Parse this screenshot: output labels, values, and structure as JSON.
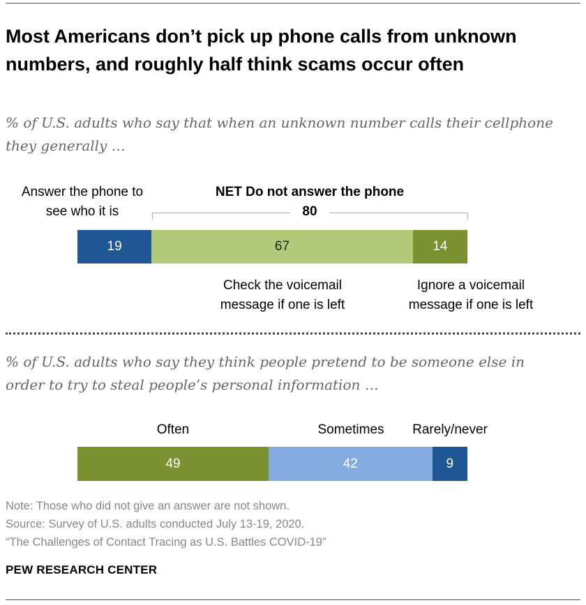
{
  "title": "Most Americans don’t pick up phone calls from unknown numbers, and roughly half think scams occur often",
  "chart_data": [
    {
      "type": "bar",
      "orientation": "horizontal-stacked",
      "subtitle": "% of U.S. adults who say that when an unknown number calls their cellphone they generally …",
      "net_label": "NET Do not answer the phone",
      "net_value": 80,
      "segments": [
        {
          "label": "Answer the phone to see who it is",
          "value": 19,
          "color": "#1f5794"
        },
        {
          "label": "Check the voicemail message if one is left",
          "value": 67,
          "color": "#b3c97a"
        },
        {
          "label": "Ignore a voicemail message if one is left",
          "value": 14,
          "color": "#7a9132"
        }
      ]
    },
    {
      "type": "bar",
      "orientation": "horizontal-stacked",
      "subtitle": "% of U.S. adults who say they think people pretend to be someone else in order to try to steal people’s personal information …",
      "segments": [
        {
          "label": "Often",
          "value": 49,
          "color": "#7a9132"
        },
        {
          "label": "Sometimes",
          "value": 42,
          "color": "#84abdf"
        },
        {
          "label": "Rarely/never",
          "value": 9,
          "color": "#1f5794"
        }
      ]
    }
  ],
  "notes": {
    "note": "Note: Those who did not give an answer are not shown.",
    "source": "Source: Survey of U.S. adults conducted July 13-19, 2020.",
    "report": "“The Challenges of Contact Tracing as U.S. Battles COVID-19”"
  },
  "logo": "PEW RESEARCH CENTER"
}
